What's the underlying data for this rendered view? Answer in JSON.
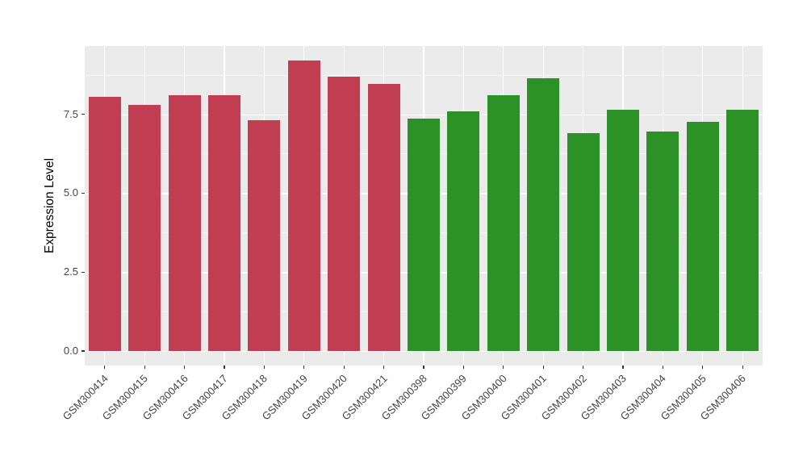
{
  "chart_data": {
    "type": "bar",
    "title": "",
    "xlabel": "",
    "ylabel": "Expression Level",
    "categories": [
      "GSM300414",
      "GSM300415",
      "GSM300416",
      "GSM300417",
      "GSM300418",
      "GSM300419",
      "GSM300420",
      "GSM300421",
      "GSM300398",
      "GSM300399",
      "GSM300400",
      "GSM300401",
      "GSM300402",
      "GSM300403",
      "GSM300404",
      "GSM300405",
      "GSM300406"
    ],
    "values": [
      8.05,
      7.8,
      8.1,
      8.1,
      7.3,
      9.2,
      8.7,
      8.45,
      7.35,
      7.6,
      8.1,
      8.65,
      6.9,
      7.65,
      6.95,
      7.25,
      7.65
    ],
    "groups": [
      "red",
      "red",
      "red",
      "red",
      "red",
      "red",
      "red",
      "red",
      "green",
      "green",
      "green",
      "green",
      "green",
      "green",
      "green",
      "green",
      "green"
    ],
    "group_colors": {
      "red": "#C13E52",
      "green": "#2C9127"
    },
    "yticks": [
      0,
      2.5,
      5,
      7.5
    ],
    "ytick_labels": [
      "0.0",
      "2.5",
      "5.0",
      "7.5"
    ],
    "y_minor_ticks": [
      1.25,
      3.75,
      6.25,
      8.75
    ],
    "ylim": [
      0,
      9.66
    ],
    "bar_width_ratio": 0.8,
    "legend": "none",
    "grid": "on",
    "panel_background": "#EBEBEB",
    "grid_color": "#FFFFFF",
    "axis_text_color": "#444444"
  }
}
